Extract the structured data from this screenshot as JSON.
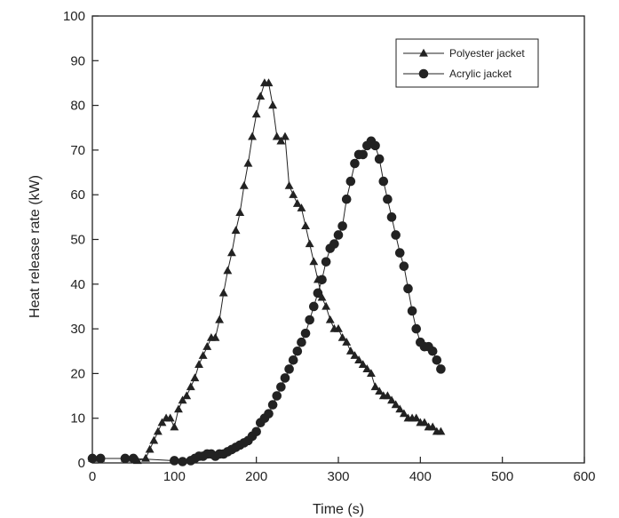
{
  "chart_data": {
    "type": "line",
    "title": "",
    "xlabel": "Time (s)",
    "ylabel": "Heat release rate (kW)",
    "xlim": [
      0,
      600
    ],
    "ylim": [
      0,
      100
    ],
    "xticks": [
      0,
      100,
      200,
      300,
      400,
      500,
      600
    ],
    "yticks": [
      0,
      10,
      20,
      30,
      40,
      50,
      60,
      70,
      80,
      90,
      100
    ],
    "xtick_labels": [
      "0",
      "100",
      "200",
      "300",
      "400",
      "500",
      "600"
    ],
    "ytick_labels": [
      "0",
      "10",
      "20",
      "30",
      "40",
      "50",
      "60",
      "70",
      "80",
      "90",
      "100"
    ],
    "grid": false,
    "legend_position": "top-right",
    "series": [
      {
        "name": "Polyester jacket",
        "marker": "triangle",
        "color": "#222222",
        "x": [
          0,
          10,
          40,
          55,
          65,
          70,
          75,
          80,
          85,
          90,
          95,
          100,
          105,
          110,
          115,
          120,
          125,
          130,
          135,
          140,
          145,
          150,
          155,
          160,
          165,
          170,
          175,
          180,
          185,
          190,
          195,
          200,
          205,
          210,
          215,
          220,
          225,
          230,
          235,
          240,
          245,
          250,
          255,
          260,
          265,
          270,
          275,
          280,
          285,
          290,
          295,
          300,
          305,
          310,
          315,
          320,
          325,
          330,
          335,
          340,
          345,
          350,
          355,
          360,
          365,
          370,
          375,
          380,
          385,
          390,
          395,
          400,
          405,
          410,
          415,
          420,
          425
        ],
        "y": [
          1,
          1,
          1,
          0.5,
          1,
          3,
          5,
          7,
          9,
          10,
          10,
          8,
          12,
          14,
          15,
          17,
          19,
          22,
          24,
          26,
          28,
          28,
          32,
          38,
          43,
          47,
          52,
          56,
          62,
          67,
          73,
          78,
          82,
          85,
          85,
          80,
          73,
          72,
          73,
          62,
          60,
          58,
          57,
          53,
          49,
          45,
          41,
          37,
          35,
          32,
          30,
          30,
          28,
          27,
          25,
          24,
          23,
          22,
          21,
          20,
          17,
          16,
          15,
          15,
          14,
          13,
          12,
          11,
          10,
          10,
          10,
          9,
          9,
          8,
          8,
          7,
          7
        ]
      },
      {
        "name": "Acrylic jacket",
        "marker": "circle",
        "color": "#222222",
        "x": [
          0,
          10,
          40,
          50,
          100,
          110,
          120,
          125,
          130,
          135,
          140,
          145,
          150,
          155,
          160,
          165,
          170,
          175,
          180,
          185,
          190,
          195,
          200,
          205,
          210,
          215,
          220,
          225,
          230,
          235,
          240,
          245,
          250,
          255,
          260,
          265,
          270,
          275,
          280,
          285,
          290,
          295,
          300,
          305,
          310,
          315,
          320,
          325,
          330,
          335,
          340,
          345,
          350,
          355,
          360,
          365,
          370,
          375,
          380,
          385,
          390,
          395,
          400,
          405,
          410,
          415,
          420,
          425
        ],
        "y": [
          1,
          1,
          1,
          1,
          0.5,
          0.3,
          0.5,
          1,
          1.5,
          1.5,
          2,
          2,
          1.5,
          2,
          2,
          2.5,
          3,
          3.5,
          4,
          4.5,
          5,
          6,
          7,
          9,
          10,
          11,
          13,
          15,
          17,
          19,
          21,
          23,
          25,
          27,
          29,
          32,
          35,
          38,
          41,
          45,
          48,
          49,
          51,
          53,
          59,
          63,
          67,
          69,
          69,
          71,
          72,
          71,
          68,
          63,
          59,
          55,
          51,
          47,
          44,
          39,
          34,
          30,
          27,
          26,
          26,
          25,
          23,
          21
        ]
      }
    ]
  }
}
